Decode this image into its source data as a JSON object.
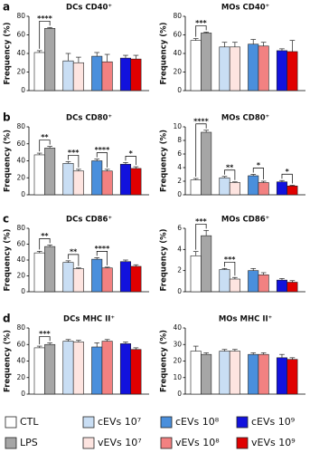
{
  "legend": [
    {
      "name": "CTL",
      "color": "#ffffff"
    },
    {
      "name": "LPS",
      "color": "#a6a6a6"
    },
    {
      "name": "cEVs 10⁷",
      "color": "#c9def4"
    },
    {
      "name": "vEVs 10⁷",
      "color": "#fde4e0"
    },
    {
      "name": "cEVs 10⁸",
      "color": "#4a8fdc"
    },
    {
      "name": "vEVs 10⁸",
      "color": "#f28181"
    },
    {
      "name": "cEVs 10⁹",
      "color": "#1212dd"
    },
    {
      "name": "vEVs 10⁹",
      "color": "#e00000"
    }
  ],
  "chart_data": [
    {
      "type": "bar",
      "panel": "a",
      "title": "DCs CD40⁺",
      "ylabel": "Frequency (%)",
      "ylim": [
        0,
        80
      ],
      "yticks": [
        0,
        20,
        40,
        60,
        80
      ],
      "values": [
        41,
        67,
        32,
        30,
        37,
        31,
        35,
        34
      ],
      "errors": [
        2,
        1,
        8,
        6,
        4,
        8,
        3,
        4
      ],
      "significance": [
        {
          "bars": [
            0,
            1
          ],
          "label": "****"
        }
      ]
    },
    {
      "type": "bar",
      "title": "MOs CD40⁺",
      "ylabel": "Frequency (%)",
      "ylim": [
        0,
        80
      ],
      "yticks": [
        0,
        20,
        40,
        60,
        80
      ],
      "values": [
        54,
        62,
        47,
        47,
        50,
        48,
        43,
        42
      ],
      "errors": [
        2,
        1,
        5,
        5,
        5,
        4,
        2,
        12
      ],
      "significance": [
        {
          "bars": [
            0,
            1
          ],
          "label": "***"
        }
      ]
    },
    {
      "type": "bar",
      "panel": "b",
      "title": "DCs CD80⁺",
      "ylabel": "Frequency (%)",
      "ylim": [
        0,
        80
      ],
      "yticks": [
        0,
        20,
        40,
        60,
        80
      ],
      "values": [
        47,
        55,
        37,
        28,
        40,
        28,
        36,
        31
      ],
      "errors": [
        2,
        2,
        2,
        2,
        2,
        2,
        2,
        2
      ],
      "significance": [
        {
          "bars": [
            0,
            1
          ],
          "label": "**"
        },
        {
          "bars": [
            2,
            3
          ],
          "label": "***"
        },
        {
          "bars": [
            4,
            5
          ],
          "label": "****"
        },
        {
          "bars": [
            6,
            7
          ],
          "label": "*"
        }
      ]
    },
    {
      "type": "bar",
      "title": "MOs CD80⁺",
      "ylabel": "Frequency (%)",
      "ylim": [
        0,
        10
      ],
      "yticks": [
        0,
        2,
        4,
        6,
        8,
        10
      ],
      "values": [
        2.2,
        9.2,
        2.5,
        1.8,
        2.8,
        1.8,
        1.9,
        1.3
      ],
      "errors": [
        0.2,
        0.3,
        0.2,
        0.1,
        0.2,
        0.2,
        0.2,
        0.1
      ],
      "significance": [
        {
          "bars": [
            0,
            1
          ],
          "label": "****"
        },
        {
          "bars": [
            2,
            3
          ],
          "label": "**"
        },
        {
          "bars": [
            4,
            5
          ],
          "label": "*"
        },
        {
          "bars": [
            6,
            7
          ],
          "label": "*"
        }
      ]
    },
    {
      "type": "bar",
      "panel": "c",
      "title": "DCs CD86⁺",
      "ylabel": "Frequency (%)",
      "ylim": [
        0,
        80
      ],
      "yticks": [
        0,
        20,
        40,
        60,
        80
      ],
      "values": [
        49,
        57,
        37,
        29,
        41,
        30,
        38,
        32
      ],
      "errors": [
        2,
        2,
        2,
        1,
        2,
        1,
        2,
        2
      ],
      "significance": [
        {
          "bars": [
            0,
            1
          ],
          "label": "**"
        },
        {
          "bars": [
            2,
            3
          ],
          "label": "**"
        },
        {
          "bars": [
            4,
            5
          ],
          "label": "****"
        }
      ]
    },
    {
      "type": "bar",
      "title": "MOs CD86⁺",
      "ylabel": "Frequency (%)",
      "ylim": [
        0,
        6
      ],
      "yticks": [
        0,
        2,
        4,
        6
      ],
      "values": [
        3.4,
        5.3,
        2.1,
        1.2,
        2.0,
        1.6,
        1.1,
        0.9
      ],
      "errors": [
        0.4,
        0.5,
        0.1,
        0.15,
        0.2,
        0.2,
        0.15,
        0.15
      ],
      "significance": [
        {
          "bars": [
            0,
            1
          ],
          "label": "***"
        },
        {
          "bars": [
            2,
            3
          ],
          "label": "***"
        }
      ]
    },
    {
      "type": "bar",
      "panel": "d",
      "title": "DCs MHC II⁺",
      "ylabel": "Frequency (%)",
      "ylim": [
        0,
        80
      ],
      "yticks": [
        0,
        20,
        40,
        60,
        80
      ],
      "values": [
        56,
        60,
        64,
        63,
        57,
        64,
        61,
        54
      ],
      "errors": [
        2,
        2,
        2,
        2,
        5,
        2,
        2,
        2
      ],
      "significance": [
        {
          "bars": [
            0,
            1
          ],
          "label": "***"
        }
      ]
    },
    {
      "type": "bar",
      "title": "MOs MHC II⁺",
      "ylabel": "Frequency (%)",
      "ylim": [
        0,
        40
      ],
      "yticks": [
        0,
        10,
        20,
        30,
        40
      ],
      "values": [
        26,
        24,
        26,
        26,
        24,
        24,
        22,
        21
      ],
      "errors": [
        3,
        1,
        1,
        1,
        1,
        1,
        2,
        1
      ],
      "significance": []
    }
  ]
}
